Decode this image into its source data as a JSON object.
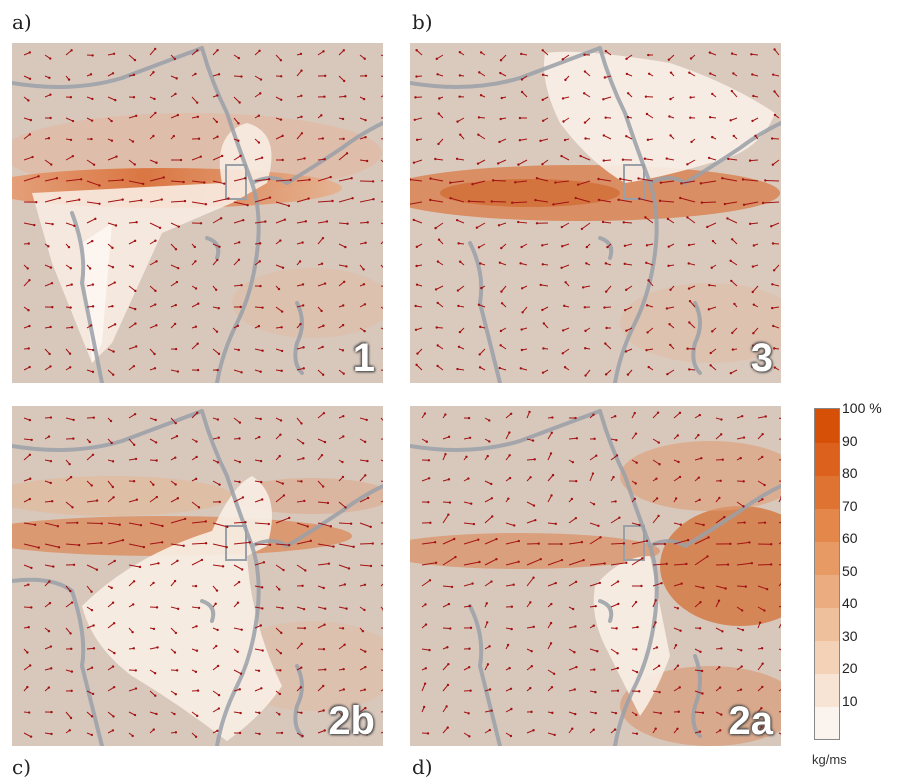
{
  "panels": [
    {
      "label": "a)",
      "number": "1"
    },
    {
      "label": "b)",
      "number": "3"
    },
    {
      "label": "c)",
      "number": "2b"
    },
    {
      "label": "d)",
      "number": "2a"
    }
  ],
  "legend": {
    "ticks": [
      "100 %",
      "90",
      "80",
      "70",
      "60",
      "50",
      "40",
      "30",
      "20",
      "10"
    ],
    "unit": "kg/ms",
    "colors": [
      "#fbf4ee",
      "#f7e4d4",
      "#f3d2b8",
      "#efc09c",
      "#ebad80",
      "#e79a64",
      "#e3874a",
      "#df7432",
      "#db611c",
      "#d65008"
    ]
  }
}
